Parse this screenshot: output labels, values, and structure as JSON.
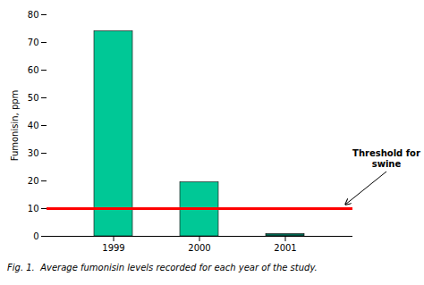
{
  "chart_data": {
    "type": "bar",
    "categories": [
      "1999",
      "2000",
      "2001"
    ],
    "values": [
      74,
      19.5,
      0.8
    ],
    "colors": [
      "#00C896",
      "#00C896",
      "#006450"
    ],
    "ylabel": "Fumonisin, ppm",
    "ylim": [
      0,
      80
    ],
    "yticks": [
      0,
      10,
      20,
      30,
      40,
      50,
      60,
      70,
      80
    ],
    "grid": false,
    "threshold": {
      "value": 10,
      "color": "#FF0000"
    },
    "annotation": "Threshold for\nswine",
    "caption": "Fig. 1.  Average fumonisin levels recorded for each year of the study."
  }
}
